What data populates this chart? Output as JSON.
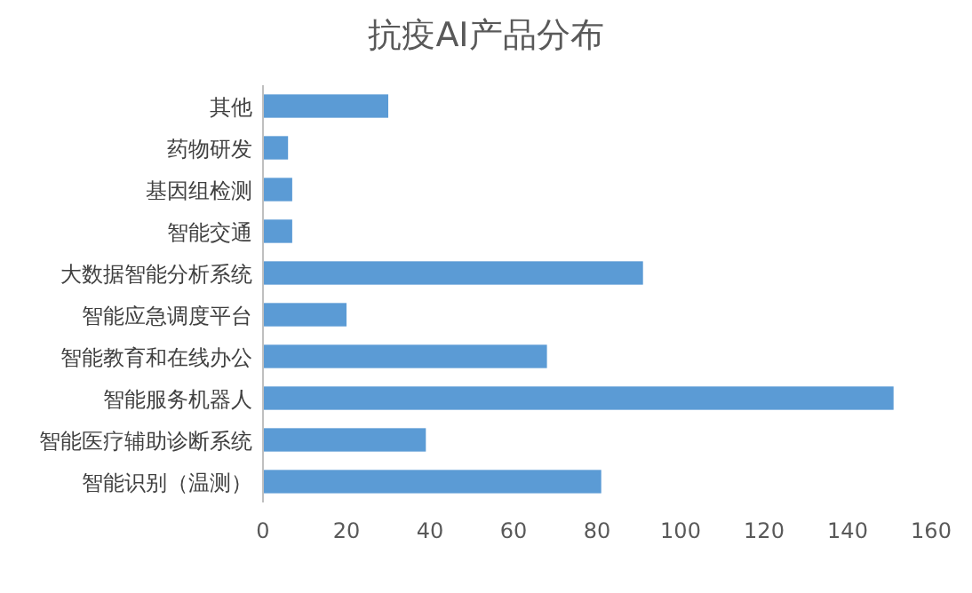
{
  "chart_data": {
    "type": "bar",
    "title": "抗疫AI产品分布",
    "orientation": "horizontal",
    "categories": [
      "其他",
      "药物研发",
      "基因组检测",
      "智能交通",
      "大数据智能分析系统",
      "智能应急调度平台",
      "智能教育和在线办公",
      "智能服务机器人",
      "智能医疗辅助诊断系统",
      "智能识别（温测）"
    ],
    "values": [
      30,
      6,
      7,
      7,
      91,
      20,
      68,
      151,
      39,
      81
    ],
    "color": "#5b9bd5",
    "xlim": [
      0,
      160
    ],
    "xticks": [
      0,
      20,
      40,
      60,
      80,
      100,
      120,
      140,
      160
    ],
    "grid": false
  }
}
